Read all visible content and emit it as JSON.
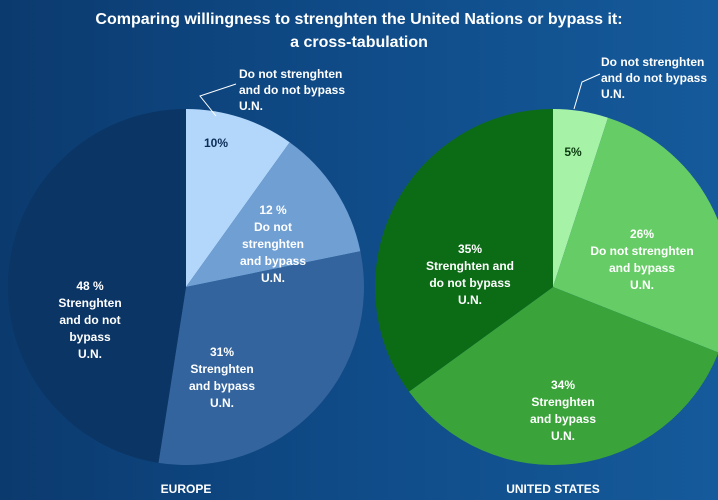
{
  "title_line1": "Comparing willingness to strenghten the United Nations or bypass it:",
  "title_line2": "a cross-tabulation",
  "chart_data": [
    {
      "type": "pie",
      "name": "EUROPE",
      "values": [
        10,
        12,
        31,
        48
      ],
      "colors": [
        "#b3d6fb",
        "#6f9fd3",
        "#33649d",
        "#0b3565"
      ],
      "labels": [
        [
          "10%"
        ],
        [
          "12 %",
          "Do not",
          "strenghten",
          "and bypass",
          "U.N."
        ],
        [
          "31%",
          "Strenghten",
          "and bypass",
          "U.N."
        ],
        [
          "48 %",
          "Strenghten",
          "and do not",
          "bypass",
          "U.N."
        ]
      ],
      "callout": [
        "Do not strenghten",
        "and do not bypass",
        "U.N."
      ],
      "label_colors": [
        "#0b2d57",
        "#ffffff",
        "#ffffff",
        "#ffffff"
      ]
    },
    {
      "type": "pie",
      "name": "UNITED STATES",
      "values": [
        5,
        26,
        34,
        35
      ],
      "colors": [
        "#a6f2a6",
        "#66cd66",
        "#3aa43a",
        "#0c6c16"
      ],
      "labels": [
        [
          "5%"
        ],
        [
          "26%",
          "Do not strenghten",
          "and bypass",
          "U.N."
        ],
        [
          "34%",
          "Strenghten",
          "and bypass",
          "U.N."
        ],
        [
          "35%",
          "Strenghten and",
          "do not bypass",
          "U.N."
        ]
      ],
      "callout": [
        "Do not strenghten",
        "and do not bypass",
        "U.N."
      ],
      "label_colors": [
        "#0b3a10",
        "#ffffff",
        "#ffffff",
        "#ffffff"
      ]
    }
  ]
}
